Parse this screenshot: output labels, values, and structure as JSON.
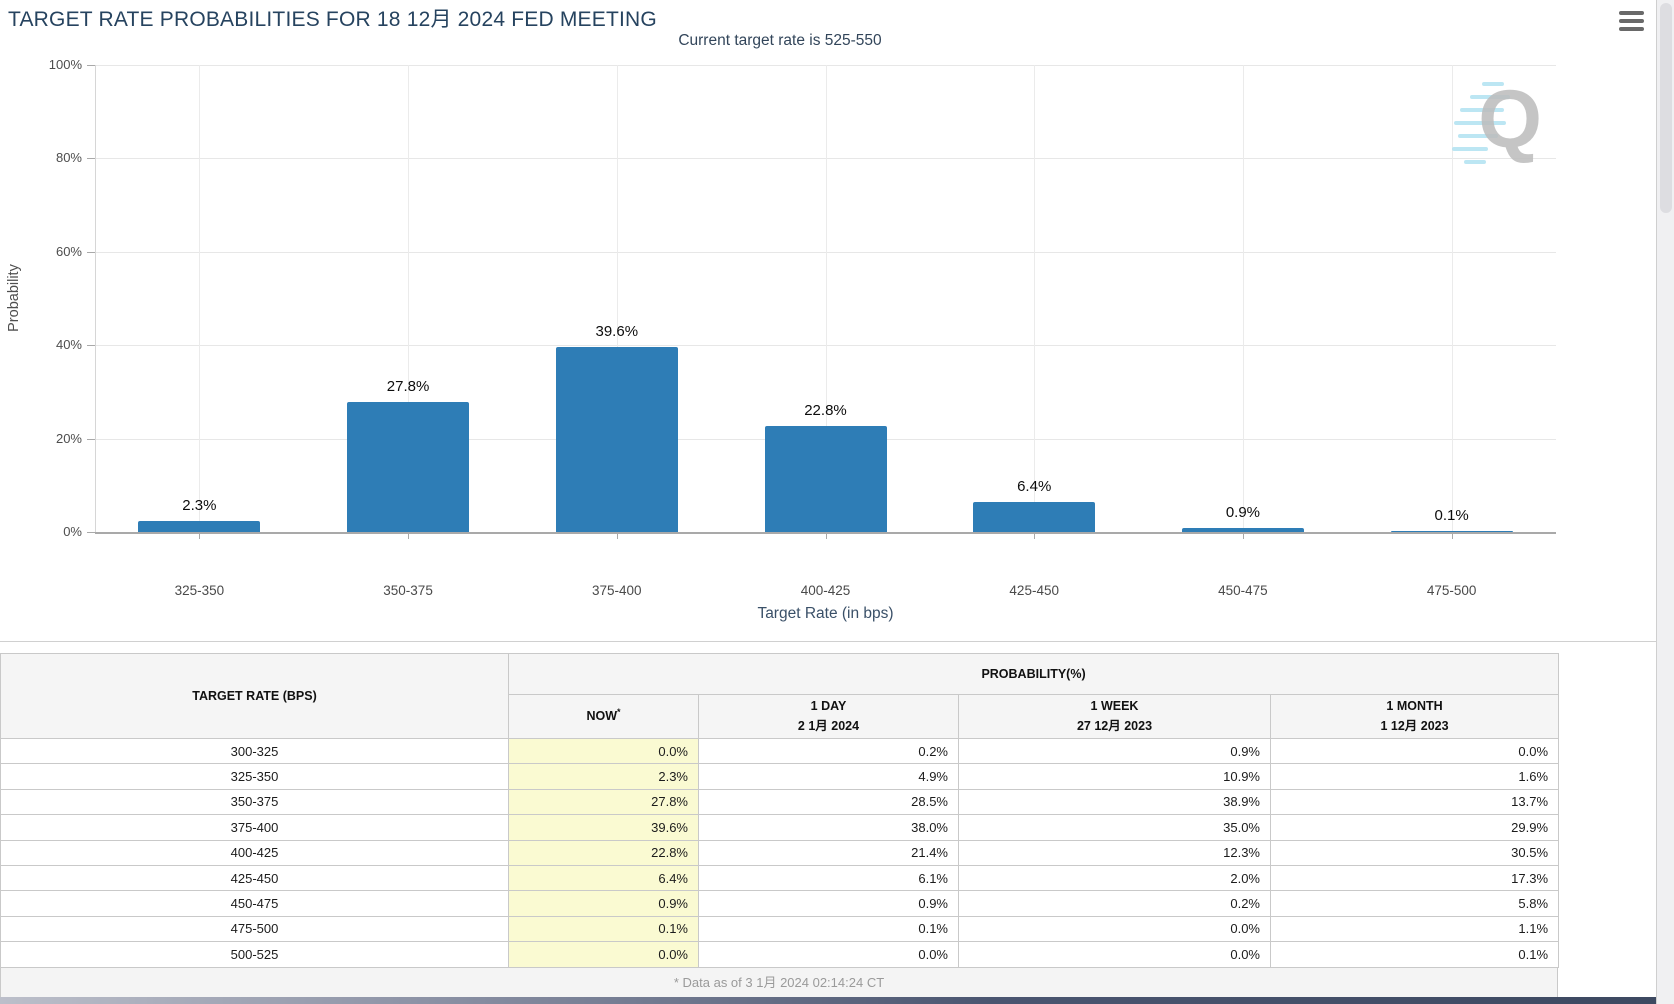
{
  "header": {
    "title": "TARGET RATE PROBABILITIES FOR 18 12月 2024 FED MEETING"
  },
  "chart": {
    "subtitle": "Current target rate is 525-550",
    "watermark_letter": "Q"
  },
  "chart_data": {
    "type": "bar",
    "title": "TARGET RATE PROBABILITIES FOR 18 12月 2024 FED MEETING",
    "subtitle": "Current target rate is 525-550",
    "categories": [
      "325-350",
      "350-375",
      "375-400",
      "400-425",
      "425-450",
      "450-475",
      "475-500"
    ],
    "values": [
      2.3,
      27.8,
      39.6,
      22.8,
      6.4,
      0.9,
      0.1
    ],
    "data_labels": [
      "2.3%",
      "27.8%",
      "39.6%",
      "22.8%",
      "6.4%",
      "0.9%",
      "0.1%"
    ],
    "xlabel": "Target Rate (in bps)",
    "ylabel": "Probability",
    "ylim": [
      0,
      100
    ],
    "y_ticks": [
      "0%",
      "20%",
      "40%",
      "60%",
      "80%",
      "100%"
    ],
    "bar_color": "#2e7db6",
    "grid": true,
    "legend": false
  },
  "table": {
    "headers": {
      "target_rate": "TARGET RATE (BPS)",
      "probability": "PROBABILITY(%)",
      "now": "NOW",
      "now_sup": "*",
      "day": "1 DAY",
      "day_date": "2 1月 2024",
      "week": "1 WEEK",
      "week_date": "27 12月 2023",
      "month": "1 MONTH",
      "month_date": "1 12月 2023"
    },
    "rows": [
      {
        "rate": "300-325",
        "now": "0.0%",
        "day": "0.2%",
        "week": "0.9%",
        "month": "0.0%"
      },
      {
        "rate": "325-350",
        "now": "2.3%",
        "day": "4.9%",
        "week": "10.9%",
        "month": "1.6%"
      },
      {
        "rate": "350-375",
        "now": "27.8%",
        "day": "28.5%",
        "week": "38.9%",
        "month": "13.7%"
      },
      {
        "rate": "375-400",
        "now": "39.6%",
        "day": "38.0%",
        "week": "35.0%",
        "month": "29.9%"
      },
      {
        "rate": "400-425",
        "now": "22.8%",
        "day": "21.4%",
        "week": "12.3%",
        "month": "30.5%"
      },
      {
        "rate": "425-450",
        "now": "6.4%",
        "day": "6.1%",
        "week": "2.0%",
        "month": "17.3%"
      },
      {
        "rate": "450-475",
        "now": "0.9%",
        "day": "0.9%",
        "week": "0.2%",
        "month": "5.8%"
      },
      {
        "rate": "475-500",
        "now": "0.1%",
        "day": "0.1%",
        "week": "0.0%",
        "month": "1.1%"
      },
      {
        "rate": "500-525",
        "now": "0.0%",
        "day": "0.0%",
        "week": "0.0%",
        "month": "0.1%"
      }
    ],
    "footnote": "* Data as of 3 1月 2024 02:14:24 CT"
  },
  "colors": {
    "bar": "#2e7db6",
    "now_column_highlight": "#fafad2",
    "title_text": "#26435f",
    "footer_text": "#9a9a9a"
  }
}
